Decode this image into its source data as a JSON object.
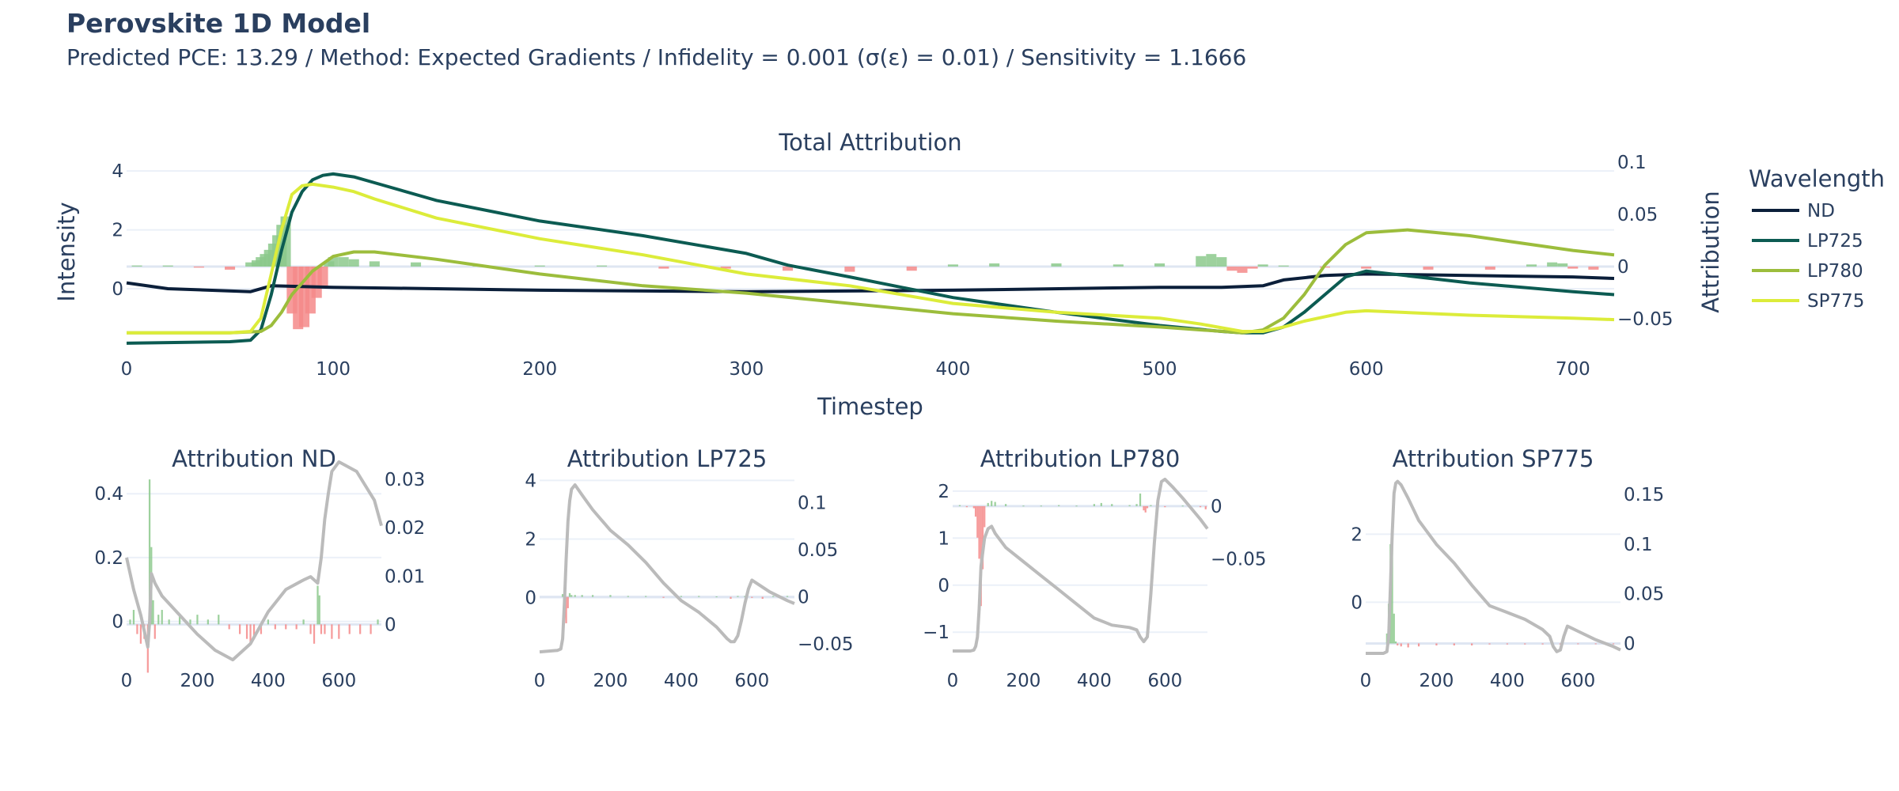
{
  "title": "Perovskite 1D Model",
  "subtitle": "Predicted PCE: 13.29 / Method: Expected Gradients / Infidelity = 0.001 (σ(ε) = 0.01) / Sensitivity = 1.1666",
  "colors": {
    "ND": "#0b1f3a",
    "LP725": "#0c5b52",
    "LP780": "#9cbd3c",
    "SP775": "#dcec3a",
    "positive": "#8cc98c",
    "negative": "#f58a8a",
    "gray": "#bbbbbb"
  },
  "chart_data": [
    {
      "type": "line",
      "title": "Total Attribution",
      "xlabel": "Timestep",
      "ylabel": "Intensity",
      "y2label": "Attribution",
      "xlim": [
        0,
        720
      ],
      "ylim": [
        -1.8,
        4.3
      ],
      "y2lim": [
        -0.072,
        0.1
      ],
      "xticks": [
        0,
        100,
        200,
        300,
        400,
        500,
        600,
        700
      ],
      "yticks": [
        0,
        2,
        4
      ],
      "y2ticks": [
        -0.05,
        0,
        0.05,
        0.1
      ],
      "y2tick_labels": [
        "−0.05",
        "0",
        "0.05",
        "0.1"
      ],
      "legend": {
        "title": "Wavelength",
        "position": "right"
      },
      "series": [
        {
          "name": "ND",
          "color": "#0b1f3a",
          "x": [
            0,
            20,
            60,
            70,
            100,
            200,
            300,
            400,
            500,
            530,
            550,
            560,
            580,
            600,
            650,
            700,
            720
          ],
          "y": [
            0.2,
            0.0,
            -0.1,
            0.1,
            0.05,
            -0.05,
            -0.1,
            -0.05,
            0.05,
            0.05,
            0.1,
            0.3,
            0.45,
            0.5,
            0.45,
            0.4,
            0.35
          ]
        },
        {
          "name": "LP725",
          "color": "#0c5b52",
          "x": [
            0,
            50,
            60,
            65,
            70,
            75,
            80,
            85,
            90,
            95,
            100,
            110,
            120,
            150,
            200,
            250,
            300,
            320,
            350,
            400,
            450,
            500,
            530,
            540,
            550,
            560,
            570,
            580,
            590,
            600,
            650,
            700,
            720
          ],
          "y": [
            -1.85,
            -1.8,
            -1.75,
            -1.4,
            -0.2,
            1.3,
            2.6,
            3.3,
            3.7,
            3.85,
            3.9,
            3.8,
            3.6,
            3.0,
            2.3,
            1.8,
            1.2,
            0.8,
            0.4,
            -0.3,
            -0.8,
            -1.25,
            -1.45,
            -1.5,
            -1.5,
            -1.3,
            -0.8,
            -0.2,
            0.4,
            0.6,
            0.2,
            -0.1,
            -0.2
          ]
        },
        {
          "name": "LP780",
          "color": "#9cbd3c",
          "x": [
            0,
            50,
            65,
            70,
            75,
            80,
            90,
            100,
            110,
            120,
            150,
            200,
            250,
            300,
            350,
            400,
            450,
            500,
            520,
            540,
            550,
            560,
            570,
            580,
            590,
            600,
            620,
            650,
            700,
            720
          ],
          "y": [
            -1.5,
            -1.5,
            -1.45,
            -1.25,
            -0.8,
            -0.2,
            0.6,
            1.1,
            1.25,
            1.25,
            1.0,
            0.5,
            0.1,
            -0.15,
            -0.5,
            -0.85,
            -1.1,
            -1.3,
            -1.4,
            -1.5,
            -1.4,
            -1.0,
            -0.2,
            0.8,
            1.5,
            1.9,
            2.0,
            1.8,
            1.3,
            1.15
          ]
        },
        {
          "name": "SP775",
          "color": "#dcec3a",
          "x": [
            0,
            50,
            60,
            65,
            70,
            75,
            80,
            85,
            90,
            100,
            110,
            120,
            150,
            200,
            250,
            300,
            350,
            400,
            450,
            500,
            520,
            540,
            550,
            560,
            570,
            580,
            590,
            600,
            650,
            700,
            720
          ],
          "y": [
            -1.5,
            -1.5,
            -1.45,
            -1.0,
            0.5,
            2.0,
            3.2,
            3.5,
            3.55,
            3.45,
            3.3,
            3.05,
            2.4,
            1.7,
            1.15,
            0.5,
            0.1,
            -0.5,
            -0.8,
            -1.0,
            -1.2,
            -1.45,
            -1.45,
            -1.3,
            -1.1,
            -0.95,
            -0.8,
            -0.75,
            -0.9,
            -1.0,
            -1.05
          ]
        }
      ],
      "attribution_bars": {
        "x": [
          5,
          20,
          35,
          50,
          60,
          63,
          65,
          67,
          69,
          71,
          73,
          75,
          77,
          80,
          83,
          86,
          89,
          92,
          95,
          98,
          100,
          105,
          110,
          120,
          140,
          170,
          200,
          230,
          260,
          290,
          320,
          350,
          380,
          400,
          420,
          450,
          480,
          500,
          520,
          525,
          530,
          535,
          540,
          545,
          550,
          560,
          580,
          600,
          630,
          660,
          680,
          690,
          695,
          700,
          710
        ],
        "values": [
          0.001,
          0.001,
          -0.001,
          -0.003,
          0.004,
          0.006,
          0.009,
          0.012,
          0.016,
          0.022,
          0.03,
          0.04,
          0.048,
          -0.045,
          -0.06,
          -0.058,
          -0.045,
          -0.03,
          -0.02,
          0.005,
          0.009,
          0.009,
          0.007,
          0.005,
          0.004,
          0.002,
          0.001,
          0.001,
          -0.002,
          -0.002,
          -0.004,
          -0.005,
          -0.004,
          0.002,
          0.003,
          0.003,
          0.002,
          0.003,
          0.01,
          0.012,
          0.009,
          -0.004,
          -0.006,
          -0.002,
          0.002,
          0.001,
          -0.001,
          -0.002,
          -0.003,
          -0.003,
          0.002,
          0.004,
          0.003,
          -0.002,
          -0.003
        ]
      }
    },
    {
      "type": "line",
      "title": "Attribution ND",
      "xlim": [
        0,
        720
      ],
      "ylim": [
        -0.1,
        0.46
      ],
      "y2lim": [
        -0.006,
        0.031
      ],
      "xticks": [
        0,
        200,
        400,
        600
      ],
      "yticks": [
        0,
        0.2,
        0.4
      ],
      "ytick_labels": [
        "0",
        "0.2",
        "0.4"
      ],
      "y2ticks": [
        0,
        0.01,
        0.02,
        0.03
      ],
      "y2tick_labels": [
        "0",
        "0.01",
        "0.02",
        "0.03"
      ],
      "series": [
        {
          "name": "",
          "color": "#bbbbbb",
          "x": [
            0,
            20,
            40,
            60,
            65,
            70,
            80,
            100,
            150,
            200,
            250,
            300,
            350,
            400,
            450,
            500,
            520,
            540,
            550,
            560,
            570,
            580,
            600,
            650,
            700,
            720
          ],
          "y": [
            0.2,
            0.1,
            0.02,
            -0.08,
            0.0,
            0.15,
            0.12,
            0.08,
            0.02,
            -0.04,
            -0.09,
            -0.12,
            -0.07,
            0.03,
            0.1,
            0.13,
            0.14,
            0.12,
            0.2,
            0.32,
            0.4,
            0.47,
            0.5,
            0.47,
            0.38,
            0.3
          ]
        }
      ],
      "attribution_bars": {
        "x": [
          10,
          20,
          30,
          40,
          50,
          60,
          65,
          70,
          75,
          80,
          90,
          100,
          120,
          150,
          180,
          200,
          230,
          260,
          290,
          320,
          340,
          350,
          360,
          380,
          400,
          420,
          450,
          480,
          500,
          520,
          530,
          540,
          545,
          550,
          560,
          580,
          600,
          630,
          660,
          690,
          710
        ],
        "values": [
          0.001,
          0.003,
          -0.002,
          -0.004,
          -0.003,
          -0.01,
          0.03,
          0.016,
          0.005,
          -0.003,
          0.002,
          0.003,
          0.001,
          0.002,
          0.001,
          0.002,
          0.001,
          0.002,
          -0.001,
          -0.002,
          -0.003,
          -0.004,
          -0.003,
          -0.002,
          0.001,
          -0.001,
          -0.001,
          -0.001,
          0.001,
          -0.002,
          -0.004,
          0.008,
          0.006,
          -0.002,
          -0.002,
          -0.003,
          -0.003,
          -0.002,
          -0.002,
          -0.002,
          0.001
        ]
      }
    },
    {
      "type": "line",
      "title": "Attribution LP725",
      "xlim": [
        0,
        720
      ],
      "ylim": [
        -1.9,
        4.2
      ],
      "y2lim": [
        -0.06,
        0.13
      ],
      "xticks": [
        0,
        200,
        400,
        600
      ],
      "yticks": [
        0,
        2,
        4
      ],
      "ytick_labels": [
        "0",
        "2",
        "4"
      ],
      "y2ticks": [
        -0.05,
        0,
        0.05,
        0.1
      ],
      "y2tick_labels": [
        "−0.05",
        "0",
        "0.05",
        "0.1"
      ],
      "series": [
        {
          "name": "",
          "color": "#bbbbbb",
          "x": [
            0,
            50,
            60,
            65,
            70,
            75,
            80,
            85,
            90,
            100,
            120,
            150,
            200,
            250,
            300,
            350,
            400,
            450,
            500,
            530,
            540,
            550,
            560,
            570,
            580,
            590,
            600,
            650,
            700,
            720
          ],
          "y": [
            -1.85,
            -1.8,
            -1.75,
            -1.4,
            -0.2,
            1.3,
            2.6,
            3.3,
            3.7,
            3.85,
            3.5,
            3.0,
            2.3,
            1.8,
            1.2,
            0.5,
            -0.1,
            -0.5,
            -1.0,
            -1.4,
            -1.5,
            -1.5,
            -1.3,
            -0.8,
            -0.2,
            0.3,
            0.6,
            0.2,
            -0.1,
            -0.2
          ]
        }
      ],
      "attribution_bars": {
        "x": [
          65,
          70,
          75,
          80,
          85,
          90,
          100,
          120,
          150,
          200,
          250,
          300,
          350,
          400,
          450,
          500,
          540,
          560,
          580,
          600,
          630,
          660,
          700
        ],
        "values": [
          0.003,
          0.006,
          -0.028,
          -0.012,
          0.004,
          0.002,
          0.002,
          0.002,
          0.002,
          0.002,
          0.001,
          0.001,
          -0.001,
          0.001,
          0.001,
          0.0005,
          -0.002,
          0.001,
          0.001,
          -0.001,
          -0.002,
          0.001,
          0.001
        ]
      }
    },
    {
      "type": "line",
      "title": "Attribution LP780",
      "xlim": [
        0,
        720
      ],
      "ylim": [
        -1.45,
        2.35
      ],
      "y2lim": [
        -0.14,
        0.03
      ],
      "xticks": [
        0,
        200,
        400,
        600
      ],
      "yticks": [
        -1,
        0,
        1,
        2
      ],
      "ytick_labels": [
        "−1",
        "0",
        "1",
        "2"
      ],
      "y2ticks": [
        -0.05,
        0
      ],
      "y2tick_labels": [
        "−0.05",
        "0"
      ],
      "series": [
        {
          "name": "",
          "color": "#bbbbbb",
          "x": [
            0,
            50,
            60,
            65,
            70,
            75,
            80,
            90,
            100,
            110,
            120,
            150,
            200,
            250,
            300,
            350,
            400,
            450,
            500,
            520,
            530,
            540,
            550,
            560,
            570,
            580,
            590,
            600,
            620,
            650,
            700,
            720
          ],
          "y": [
            -1.4,
            -1.4,
            -1.38,
            -1.3,
            -1.1,
            -0.5,
            0.4,
            1.0,
            1.2,
            1.25,
            1.1,
            0.8,
            0.5,
            0.2,
            -0.1,
            -0.4,
            -0.7,
            -0.85,
            -0.9,
            -0.95,
            -1.1,
            -1.2,
            -1.1,
            -0.2,
            0.9,
            1.8,
            2.2,
            2.25,
            2.1,
            1.85,
            1.4,
            1.2
          ]
        }
      ],
      "attribution_bars": {
        "x": [
          20,
          40,
          60,
          65,
          70,
          75,
          80,
          85,
          90,
          100,
          110,
          120,
          150,
          200,
          250,
          300,
          350,
          400,
          420,
          450,
          500,
          520,
          530,
          540,
          545,
          550,
          560,
          600,
          650,
          700,
          715
        ],
        "values": [
          0.001,
          -0.001,
          -0.002,
          -0.01,
          -0.03,
          -0.05,
          -0.095,
          -0.06,
          -0.02,
          0.003,
          0.005,
          0.004,
          0.002,
          0.0005,
          0.0005,
          0.001,
          0.0005,
          0.002,
          0.003,
          0.002,
          0.001,
          0.002,
          0.012,
          -0.004,
          -0.006,
          -0.002,
          0.001,
          -0.001,
          0.0005,
          -0.001,
          -0.003
        ]
      }
    },
    {
      "type": "line",
      "title": "Attribution SP775",
      "xlim": [
        0,
        720
      ],
      "ylim": [
        -1.5,
        3.75
      ],
      "y2lim": [
        -0.01,
        0.17
      ],
      "xticks": [
        0,
        200,
        400,
        600
      ],
      "yticks": [
        0,
        2
      ],
      "ytick_labels": [
        "0",
        "2"
      ],
      "y2ticks": [
        0,
        0.05,
        0.1,
        0.15
      ],
      "y2tick_labels": [
        "0",
        "0.05",
        "0.1",
        "0.15"
      ],
      "series": [
        {
          "name": "",
          "color": "#bbbbbb",
          "x": [
            0,
            50,
            60,
            65,
            70,
            75,
            80,
            85,
            90,
            100,
            120,
            150,
            200,
            250,
            300,
            350,
            400,
            450,
            500,
            520,
            530,
            540,
            550,
            560,
            570,
            580,
            600,
            650,
            700,
            720
          ],
          "y": [
            -1.5,
            -1.5,
            -1.45,
            -1.0,
            0.5,
            2.0,
            3.2,
            3.5,
            3.55,
            3.45,
            3.05,
            2.4,
            1.7,
            1.15,
            0.5,
            -0.1,
            -0.3,
            -0.5,
            -0.8,
            -1.0,
            -1.3,
            -1.45,
            -1.4,
            -1.0,
            -0.7,
            -0.75,
            -0.85,
            -1.1,
            -1.3,
            -1.4
          ]
        }
      ],
      "attribution_bars": {
        "x": [
          60,
          65,
          70,
          75,
          80,
          85,
          90,
          100,
          120,
          150,
          200,
          250,
          300,
          350,
          400,
          450,
          500,
          550,
          600,
          650,
          700
        ],
        "values": [
          0.01,
          0.04,
          0.1,
          0.12,
          0.03,
          0.002,
          -0.002,
          -0.003,
          -0.004,
          -0.003,
          -0.002,
          -0.002,
          -0.002,
          -0.001,
          -0.001,
          -0.001,
          -0.001,
          -0.001,
          -0.0005,
          -0.0005,
          -0.0005
        ]
      }
    }
  ]
}
